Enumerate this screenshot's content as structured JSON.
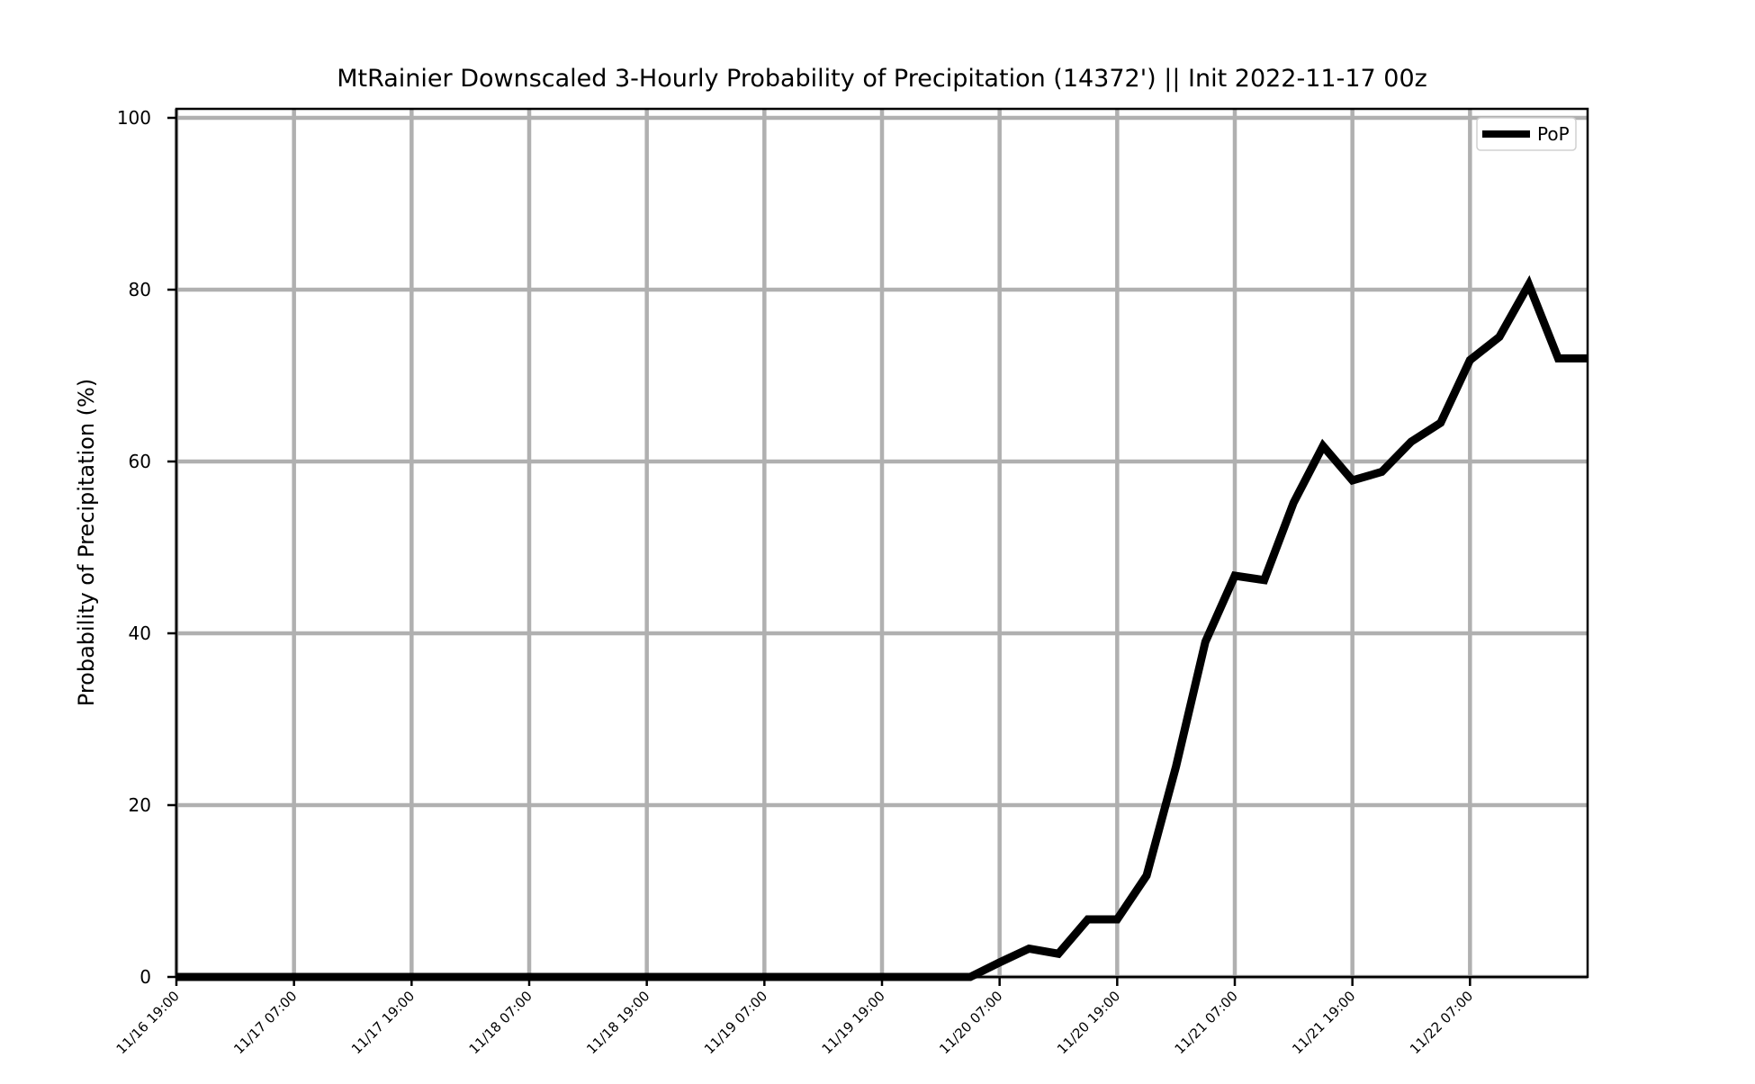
{
  "chart_data": {
    "type": "line",
    "title": "MtRainier Downscaled 3-Hourly Probability of Precipitation (14372') || Init 2022-11-17 00z",
    "xlabel": "",
    "ylabel": "Probability of Precipitation (%)",
    "ylim": [
      0,
      100
    ],
    "x_time_range": [
      "2022-11-16 19:00",
      "2022-11-22 19:00"
    ],
    "x_tick_labels": [
      "11/16 19:00",
      "11/17 07:00",
      "11/17 19:00",
      "11/18 07:00",
      "11/18 19:00",
      "11/19 07:00",
      "11/19 19:00",
      "11/20 07:00",
      "11/20 19:00",
      "11/21 07:00",
      "11/21 19:00",
      "11/22 07:00"
    ],
    "y_ticks": [
      0,
      20,
      40,
      60,
      80,
      100
    ],
    "grid": true,
    "legend_position": "top-right",
    "series": [
      {
        "name": "PoP",
        "color": "#000000",
        "x": [
          "2022-11-16 19:00",
          "2022-11-16 22:00",
          "2022-11-17 01:00",
          "2022-11-17 04:00",
          "2022-11-17 07:00",
          "2022-11-17 10:00",
          "2022-11-17 13:00",
          "2022-11-17 16:00",
          "2022-11-17 19:00",
          "2022-11-17 22:00",
          "2022-11-18 01:00",
          "2022-11-18 04:00",
          "2022-11-18 07:00",
          "2022-11-18 10:00",
          "2022-11-18 13:00",
          "2022-11-18 16:00",
          "2022-11-18 19:00",
          "2022-11-18 22:00",
          "2022-11-19 01:00",
          "2022-11-19 04:00",
          "2022-11-19 07:00",
          "2022-11-19 10:00",
          "2022-11-19 13:00",
          "2022-11-19 16:00",
          "2022-11-19 19:00",
          "2022-11-19 22:00",
          "2022-11-20 01:00",
          "2022-11-20 04:00",
          "2022-11-20 07:00",
          "2022-11-20 10:00",
          "2022-11-20 13:00",
          "2022-11-20 16:00",
          "2022-11-20 19:00",
          "2022-11-20 22:00",
          "2022-11-21 01:00",
          "2022-11-21 04:00",
          "2022-11-21 07:00",
          "2022-11-21 10:00",
          "2022-11-21 13:00",
          "2022-11-21 16:00",
          "2022-11-21 19:00",
          "2022-11-21 22:00",
          "2022-11-22 01:00",
          "2022-11-22 04:00",
          "2022-11-22 07:00",
          "2022-11-22 10:00",
          "2022-11-22 13:00",
          "2022-11-22 16:00",
          "2022-11-22 19:00"
        ],
        "values": [
          0,
          0,
          0,
          0,
          0,
          0,
          0,
          0,
          0,
          0,
          0,
          0,
          0,
          0,
          0,
          0,
          0,
          0,
          0,
          0,
          0,
          0,
          0,
          0,
          0,
          0,
          0,
          0,
          1.7,
          3.3,
          2.7,
          6.7,
          6.7,
          11.8,
          24.5,
          39.0,
          46.7,
          46.2,
          55.2,
          61.8,
          57.8,
          58.8,
          62.3,
          64.5,
          71.8,
          74.5,
          80.6,
          72.0,
          72.0
        ]
      }
    ]
  }
}
